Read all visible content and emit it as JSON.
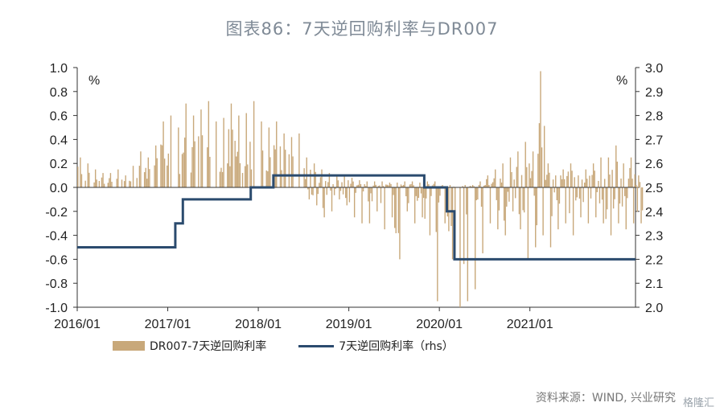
{
  "title": "图表86：7天逆回购利率与DR007",
  "source": "资料来源：WIND, 兴业研究",
  "watermark": "格隆汇",
  "chart_data": {
    "type": "bar+line",
    "left_axis": {
      "unit": "%",
      "ylim": [
        -1.0,
        1.0
      ],
      "ticks": [
        "1.0",
        "0.8",
        "0.6",
        "0.4",
        "0.2",
        "0.0",
        "-0.2",
        "-0.4",
        "-0.6",
        "-0.8",
        "-1.0"
      ]
    },
    "right_axis": {
      "unit": "%",
      "ylim": [
        2.0,
        3.0
      ],
      "ticks": [
        "3.0",
        "2.9",
        "2.8",
        "2.7",
        "2.6",
        "2.5",
        "2.4",
        "2.3",
        "2.2",
        "2.1",
        "2.0"
      ]
    },
    "x_ticks": [
      "2016/01",
      "2017/01",
      "2018/01",
      "2019/01",
      "2020/01",
      "2021/01"
    ],
    "x_range": [
      "2016-01",
      "2022-03"
    ],
    "legend": [
      "DR007-7天逆回购利率",
      "7天逆回购利率（rhs）"
    ],
    "colors": {
      "bars": "#c8a87a",
      "line": "#2b4b6e"
    },
    "spread_monthly_envelope": {
      "months": [
        "2016-01",
        "2016-02",
        "2016-03",
        "2016-04",
        "2016-05",
        "2016-06",
        "2016-07",
        "2016-08",
        "2016-09",
        "2016-10",
        "2016-11",
        "2016-12",
        "2017-01",
        "2017-02",
        "2017-03",
        "2017-04",
        "2017-05",
        "2017-06",
        "2017-07",
        "2017-08",
        "2017-09",
        "2017-10",
        "2017-11",
        "2017-12",
        "2018-01",
        "2018-02",
        "2018-03",
        "2018-04",
        "2018-05",
        "2018-06",
        "2018-07",
        "2018-08",
        "2018-09",
        "2018-10",
        "2018-11",
        "2018-12",
        "2019-01",
        "2019-02",
        "2019-03",
        "2019-04",
        "2019-05",
        "2019-06",
        "2019-07",
        "2019-08",
        "2019-09",
        "2019-10",
        "2019-11",
        "2019-12",
        "2020-01",
        "2020-02",
        "2020-03",
        "2020-04",
        "2020-05",
        "2020-06",
        "2020-07",
        "2020-08",
        "2020-09",
        "2020-10",
        "2020-11",
        "2020-12",
        "2021-01",
        "2021-02",
        "2021-03",
        "2021-04",
        "2021-05",
        "2021-06",
        "2021-07",
        "2021-08",
        "2021-09",
        "2021-10",
        "2021-11",
        "2021-12",
        "2022-01",
        "2022-02",
        "2022-03"
      ],
      "max": [
        0.25,
        0.2,
        0.15,
        0.12,
        0.12,
        0.15,
        0.1,
        0.18,
        0.3,
        0.25,
        0.35,
        0.55,
        0.6,
        0.5,
        0.7,
        0.6,
        0.65,
        0.72,
        0.55,
        0.58,
        0.7,
        0.6,
        0.62,
        0.72,
        0.55,
        0.5,
        0.55,
        0.45,
        0.42,
        0.45,
        0.25,
        0.2,
        0.15,
        0.12,
        0.1,
        0.1,
        0.08,
        0.06,
        0.05,
        0.05,
        0.05,
        0.04,
        0.04,
        0.05,
        0.05,
        0.04,
        0.05,
        0.05,
        0.02,
        0.02,
        0.0,
        0.02,
        0.02,
        0.05,
        0.1,
        0.15,
        0.2,
        0.25,
        0.3,
        0.38,
        0.3,
        0.97,
        0.2,
        0.1,
        0.15,
        0.2,
        0.1,
        0.15,
        0.2,
        0.25,
        0.25,
        0.35,
        0.2,
        0.25,
        0.1
      ],
      "min": [
        0.0,
        0.0,
        0.0,
        0.0,
        0.0,
        0.0,
        0.0,
        0.0,
        0.0,
        0.0,
        0.0,
        0.0,
        0.0,
        0.0,
        0.0,
        0.0,
        0.0,
        0.0,
        0.0,
        0.0,
        0.0,
        0.0,
        0.0,
        0.0,
        0.0,
        0.0,
        0.0,
        0.0,
        0.0,
        0.0,
        -0.1,
        -0.15,
        -0.25,
        -0.2,
        -0.1,
        -0.15,
        -0.25,
        -0.3,
        -0.3,
        -0.2,
        -0.35,
        -0.25,
        -0.6,
        -0.2,
        -0.3,
        -0.25,
        -0.4,
        -0.95,
        -0.3,
        -0.6,
        -1.0,
        -0.95,
        -0.85,
        -0.55,
        -0.3,
        -0.35,
        -0.4,
        -0.2,
        -0.35,
        -0.6,
        -0.5,
        -0.4,
        -0.5,
        -0.35,
        -0.3,
        -0.4,
        -0.25,
        -0.3,
        -0.25,
        -0.3,
        -0.4,
        -0.3,
        -0.35,
        -0.3,
        -0.3
      ]
    },
    "reverse_repo_rate_steps": [
      {
        "from": "2016-01",
        "rate": 2.25
      },
      {
        "from": "2017-02",
        "rate": 2.35
      },
      {
        "from": "2017-03",
        "rate": 2.45
      },
      {
        "from": "2017-12",
        "rate": 2.5
      },
      {
        "from": "2018-03",
        "rate": 2.55
      },
      {
        "from": "2019-11",
        "rate": 2.5
      },
      {
        "from": "2020-02",
        "rate": 2.4
      },
      {
        "from": "2020-03",
        "rate": 2.2
      },
      {
        "to": "2022-03",
        "rate": 2.2
      }
    ]
  }
}
